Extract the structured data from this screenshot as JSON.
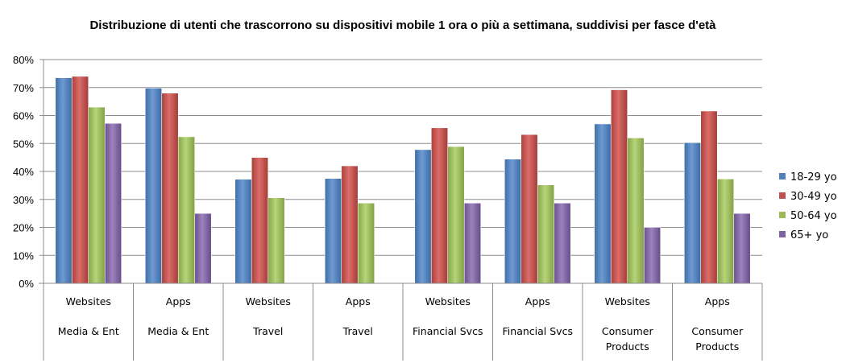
{
  "chart_data": {
    "type": "bar",
    "title": "Distribuzione di utenti che trascorrono su dispositivi mobile 1 ora o più a settimana, suddivisi per fasce d'età",
    "xlabel": "",
    "ylabel": "",
    "ylim": [
      0,
      80
    ],
    "y_ticks": [
      "0%",
      "10%",
      "20%",
      "30%",
      "40%",
      "50%",
      "60%",
      "70%",
      "80%"
    ],
    "grid": true,
    "legend_position": "right",
    "categories": [
      {
        "type": "Websites",
        "sector": [
          "Media & Ent"
        ]
      },
      {
        "type": "Apps",
        "sector": [
          "Media & Ent"
        ]
      },
      {
        "type": "Websites",
        "sector": [
          "Travel"
        ]
      },
      {
        "type": "Apps",
        "sector": [
          "Travel"
        ]
      },
      {
        "type": "Websites",
        "sector": [
          "Financial Svcs"
        ]
      },
      {
        "type": "Apps",
        "sector": [
          "Financial Svcs"
        ]
      },
      {
        "type": "Websites",
        "sector": [
          "Consumer",
          "Products"
        ]
      },
      {
        "type": "Apps",
        "sector": [
          "Consumer",
          "Products"
        ]
      }
    ],
    "series": [
      {
        "name": "18-29 yo",
        "color": "#4f81bd",
        "values": [
          73.5,
          69.8,
          37.2,
          37.5,
          47.8,
          44.4,
          57.0,
          50.3
        ]
      },
      {
        "name": "30-49 yo",
        "color": "#c0504d",
        "values": [
          74.0,
          68.0,
          45.0,
          42.0,
          55.6,
          53.2,
          69.2,
          61.6
        ]
      },
      {
        "name": "50-64 yo",
        "color": "#9bbb59",
        "values": [
          63.0,
          52.4,
          30.6,
          28.7,
          48.9,
          35.2,
          52.0,
          37.3
        ]
      },
      {
        "name": "65+ yo",
        "color": "#8064a2",
        "values": [
          57.2,
          25.0,
          0,
          0,
          28.7,
          28.7,
          20.0,
          25.0
        ]
      }
    ]
  }
}
